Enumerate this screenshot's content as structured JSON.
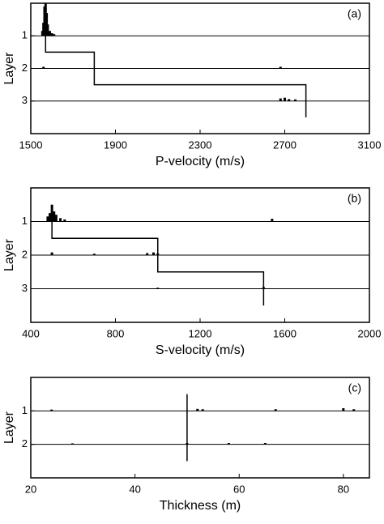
{
  "chart_data": [
    {
      "type": "layer-histogram",
      "panel_label": "(a)",
      "ylabel": "Layer",
      "xlabel": "P-velocity (m/s)",
      "xlim": [
        1500,
        3100
      ],
      "xticks": [
        1500,
        1900,
        2300,
        2700,
        3100
      ],
      "ylim": [
        4,
        0
      ],
      "yticks": [
        1,
        2,
        3
      ],
      "grid": true,
      "color": "#000000",
      "model": {
        "x": [
          1570,
          1570,
          1800,
          1800,
          2800,
          2800
        ],
        "y": [
          0,
          1.5,
          1.5,
          2.5,
          2.5,
          3.5
        ]
      },
      "histograms": [
        {
          "layer": 1,
          "x": [
            1555,
            1560,
            1565,
            1570,
            1575,
            1580,
            1590,
            1600,
            1610
          ],
          "values": [
            0.15,
            0.4,
            0.9,
            1.0,
            0.7,
            0.35,
            0.15,
            0.08,
            0.05
          ]
        },
        {
          "layer": 2,
          "x": [
            1560,
            2680
          ],
          "values": [
            0.05,
            0.05
          ]
        },
        {
          "layer": 3,
          "x": [
            2680,
            2700,
            2720,
            2750
          ],
          "values": [
            0.08,
            0.1,
            0.06,
            0.05
          ]
        }
      ]
    },
    {
      "type": "layer-histogram",
      "panel_label": "(b)",
      "ylabel": "Layer",
      "xlabel": "S-velocity (m/s)",
      "xlim": [
        400,
        2000
      ],
      "xticks": [
        400,
        800,
        1200,
        1600,
        2000
      ],
      "ylim": [
        4,
        0
      ],
      "yticks": [
        1,
        2,
        3
      ],
      "grid": true,
      "color": "#000000",
      "model": {
        "x": [
          500,
          500,
          1000,
          1000,
          1500,
          1500
        ],
        "y": [
          0.5,
          1.5,
          1.5,
          2.5,
          2.5,
          3.5
        ]
      },
      "histograms": [
        {
          "layer": 1,
          "x": [
            480,
            490,
            500,
            510,
            520,
            540,
            560,
            1540
          ],
          "values": [
            0.15,
            0.25,
            0.5,
            0.3,
            0.2,
            0.1,
            0.06,
            0.08
          ]
        },
        {
          "layer": 2,
          "x": [
            500,
            700,
            950,
            980,
            1000
          ],
          "values": [
            0.08,
            0.04,
            0.06,
            0.08,
            0.05
          ]
        },
        {
          "layer": 3,
          "x": [
            1000,
            1500
          ],
          "values": [
            0.03,
            0.05
          ]
        }
      ]
    },
    {
      "type": "layer-histogram",
      "panel_label": "(c)",
      "ylabel": "Layer",
      "xlabel": "Thickness (m)",
      "xlim": [
        20,
        85
      ],
      "xticks": [
        20,
        40,
        60,
        80
      ],
      "ylim": [
        3,
        0
      ],
      "yticks": [
        1,
        2
      ],
      "grid": true,
      "color": "#000000",
      "model": {
        "x": [
          50,
          50
        ],
        "y": [
          0.5,
          2.5
        ]
      },
      "histograms": [
        {
          "layer": 1,
          "x": [
            24,
            52,
            53,
            67,
            80,
            82
          ],
          "values": [
            0.04,
            0.06,
            0.05,
            0.05,
            0.08,
            0.05
          ]
        },
        {
          "layer": 2,
          "x": [
            28,
            50,
            58,
            65
          ],
          "values": [
            0.03,
            0.04,
            0.04,
            0.04
          ]
        }
      ]
    }
  ]
}
